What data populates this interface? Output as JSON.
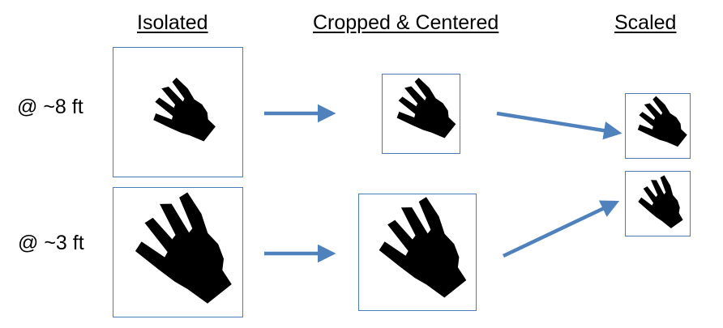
{
  "columns": {
    "isolated": "Isolated",
    "cropped_centered": "Cropped & Centered",
    "scaled": "Scaled"
  },
  "rows": {
    "far": "@ ~8 ft",
    "near": "@ ~3 ft"
  },
  "colors": {
    "frame_border": "#4a7ab8",
    "arrow": "#4f81bd",
    "hand": "#000000"
  },
  "icons": [
    "hand-silhouette-icon",
    "right-arrow-icon"
  ]
}
